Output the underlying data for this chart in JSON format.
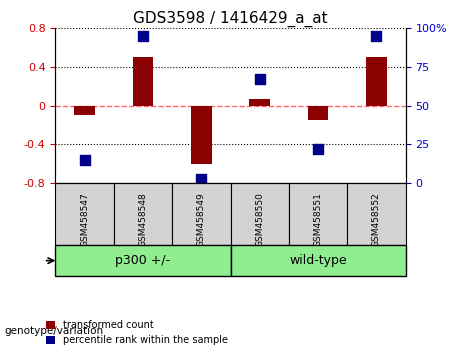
{
  "title": "GDS3598 / 1416429_a_at",
  "samples": [
    "GSM458547",
    "GSM458548",
    "GSM458549",
    "GSM458550",
    "GSM458551",
    "GSM458552"
  ],
  "bar_values": [
    -0.1,
    0.5,
    -0.6,
    0.07,
    -0.15,
    0.5
  ],
  "scatter_values": [
    15,
    95,
    3,
    67,
    22,
    95
  ],
  "groups": [
    {
      "label": "p300 +/-",
      "start": 0,
      "end": 3,
      "color": "#90EE90"
    },
    {
      "label": "wild-type",
      "start": 3,
      "end": 6,
      "color": "#90EE90"
    }
  ],
  "ylim_left": [
    -0.8,
    0.8
  ],
  "ylim_right": [
    0,
    100
  ],
  "bar_color": "#8B0000",
  "scatter_color": "#00008B",
  "zero_line_color": "#FF6666",
  "grid_color": "#000000",
  "background_color": "#FFFFFF",
  "tick_label_color_left": "#CC0000",
  "tick_label_color_right": "#0000CC",
  "xlabel_color": "#333333",
  "genotype_label": "genotype/variation",
  "legend_bar_label": "transformed count",
  "legend_scatter_label": "percentile rank within the sample",
  "left_yticks": [
    -0.8,
    -0.4,
    0.0,
    0.4,
    0.8
  ],
  "right_yticks": [
    0,
    25,
    50,
    75,
    100
  ]
}
